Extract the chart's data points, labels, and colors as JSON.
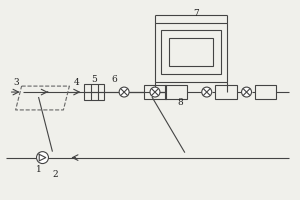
{
  "bg_color": "#f0f0eb",
  "line_color": "#444444",
  "dash_color": "#666666",
  "figsize": [
    3.0,
    2.0
  ],
  "dpi": 100,
  "lw": 0.8
}
